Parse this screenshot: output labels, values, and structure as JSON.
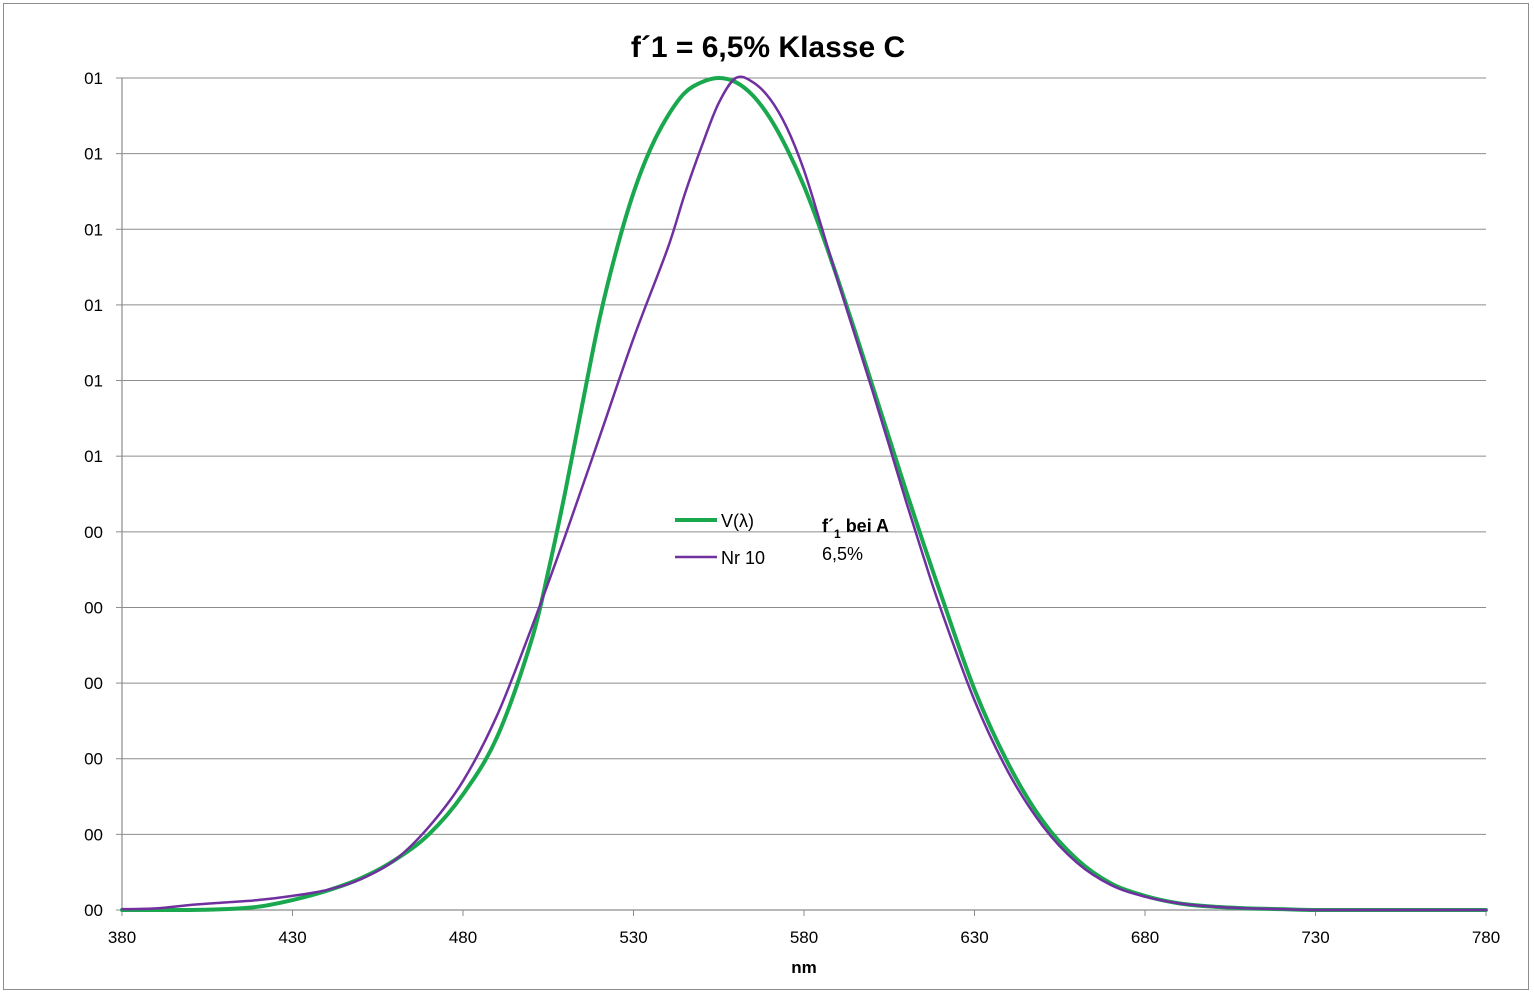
{
  "chart_data": {
    "type": "line",
    "title": "f´1 = 6,5% Klasse C",
    "xlabel": "nm",
    "ylabel": "",
    "xlim": [
      380,
      780
    ],
    "ylim": [
      0,
      1
    ],
    "x_ticks": [
      380,
      430,
      480,
      530,
      580,
      630,
      680,
      730,
      780
    ],
    "y_tick_labels": [
      "00",
      "00",
      "00",
      "00",
      "00",
      "00",
      "01",
      "01",
      "01",
      "01",
      "01",
      "01"
    ],
    "grid": true,
    "legend_placement": "center",
    "series": [
      {
        "name": "V(λ)",
        "color": "#1aa84f",
        "x": [
          380,
          390,
          400,
          410,
          420,
          430,
          440,
          450,
          460,
          470,
          480,
          490,
          500,
          505,
          510,
          515,
          520,
          525,
          530,
          535,
          540,
          545,
          550,
          555,
          560,
          565,
          570,
          575,
          580,
          585,
          590,
          595,
          600,
          605,
          610,
          615,
          620,
          630,
          640,
          650,
          660,
          670,
          680,
          690,
          700,
          710,
          720,
          730,
          740,
          750,
          760,
          770,
          780
        ],
        "y": [
          0.0,
          0.0,
          0.0,
          0.001,
          0.004,
          0.012,
          0.023,
          0.038,
          0.06,
          0.091,
          0.139,
          0.208,
          0.323,
          0.407,
          0.503,
          0.608,
          0.71,
          0.793,
          0.862,
          0.915,
          0.954,
          0.982,
          0.995,
          1.0,
          0.995,
          0.979,
          0.952,
          0.915,
          0.87,
          0.816,
          0.757,
          0.695,
          0.631,
          0.567,
          0.503,
          0.441,
          0.381,
          0.265,
          0.175,
          0.107,
          0.061,
          0.032,
          0.017,
          0.008,
          0.004,
          0.002,
          0.001,
          0.0,
          0.0,
          0.0,
          0.0,
          0.0,
          0.0
        ]
      },
      {
        "name": "Nr 10",
        "color": "#7030a0",
        "x": [
          380,
          390,
          400,
          410,
          420,
          430,
          440,
          450,
          460,
          470,
          480,
          490,
          500,
          510,
          520,
          530,
          540,
          545,
          550,
          555,
          560,
          565,
          570,
          575,
          580,
          585,
          590,
          595,
          600,
          605,
          610,
          615,
          620,
          630,
          640,
          650,
          660,
          670,
          680,
          690,
          700,
          710,
          720,
          730,
          740,
          750,
          760,
          770,
          780
        ],
        "y": [
          0.001,
          0.002,
          0.006,
          0.009,
          0.012,
          0.017,
          0.024,
          0.037,
          0.06,
          0.1,
          0.155,
          0.234,
          0.338,
          0.45,
          0.568,
          0.687,
          0.795,
          0.86,
          0.918,
          0.97,
          1.0,
          0.995,
          0.975,
          0.94,
          0.889,
          0.823,
          0.755,
          0.69,
          0.625,
          0.558,
          0.49,
          0.425,
          0.363,
          0.252,
          0.165,
          0.101,
          0.057,
          0.03,
          0.016,
          0.008,
          0.004,
          0.002,
          0.001,
          0.0,
          0.0,
          0.0,
          0.0,
          0.0,
          0.0
        ]
      }
    ],
    "annotation": {
      "label_main": "f´",
      "label_sub": "1",
      "label_rest": " bei A",
      "value": "6,5%"
    }
  }
}
